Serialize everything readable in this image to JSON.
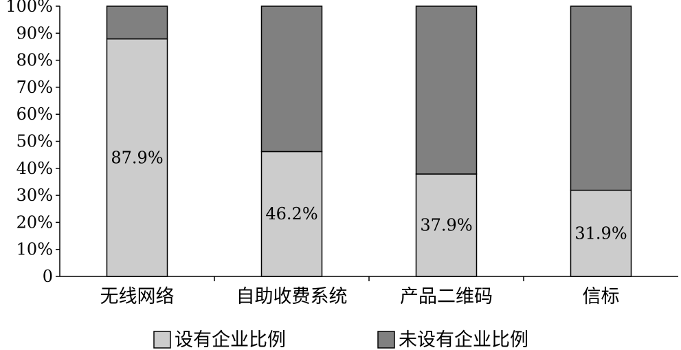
{
  "chart_data": {
    "type": "bar",
    "stacked": true,
    "percent": true,
    "categories": [
      "无线网络",
      "自助收费系统",
      "产品二维码",
      "信标"
    ],
    "series": [
      {
        "name": "设有企业比例",
        "values": [
          87.9,
          46.2,
          37.9,
          31.9
        ],
        "color": "#cccccc"
      },
      {
        "name": "未设有企业比例",
        "values": [
          12.1,
          53.8,
          62.1,
          68.1
        ],
        "color": "#808080"
      }
    ],
    "data_labels": [
      "87.9%",
      "46.2%",
      "37.9%",
      "31.9%"
    ],
    "yticks": [
      "0",
      "10%",
      "20%",
      "30%",
      "40%",
      "50%",
      "60%",
      "70%",
      "80%",
      "90%",
      "100%"
    ],
    "ylim": [
      0,
      100
    ],
    "grid": false,
    "legend_position": "bottom"
  }
}
